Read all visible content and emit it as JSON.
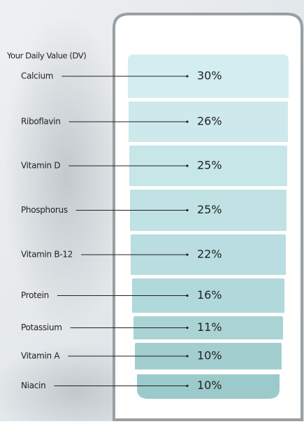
{
  "title": "Your Daily Value  (DV)",
  "nutrients": [
    {
      "name": "Calcium",
      "value": "30%"
    },
    {
      "name": "Riboflavin",
      "value": "26%"
    },
    {
      "name": "Vitamin D",
      "value": "25%"
    },
    {
      "name": "Phosphorus",
      "value": "25%"
    },
    {
      "name": "Vitamin B-12",
      "value": "22%"
    },
    {
      "name": "Protein",
      "value": "16%"
    },
    {
      "name": "Potassium",
      "value": "11%"
    },
    {
      "name": "Vitamin A",
      "value": "10%"
    },
    {
      "name": "Niacin",
      "value": "10%"
    }
  ]
}
